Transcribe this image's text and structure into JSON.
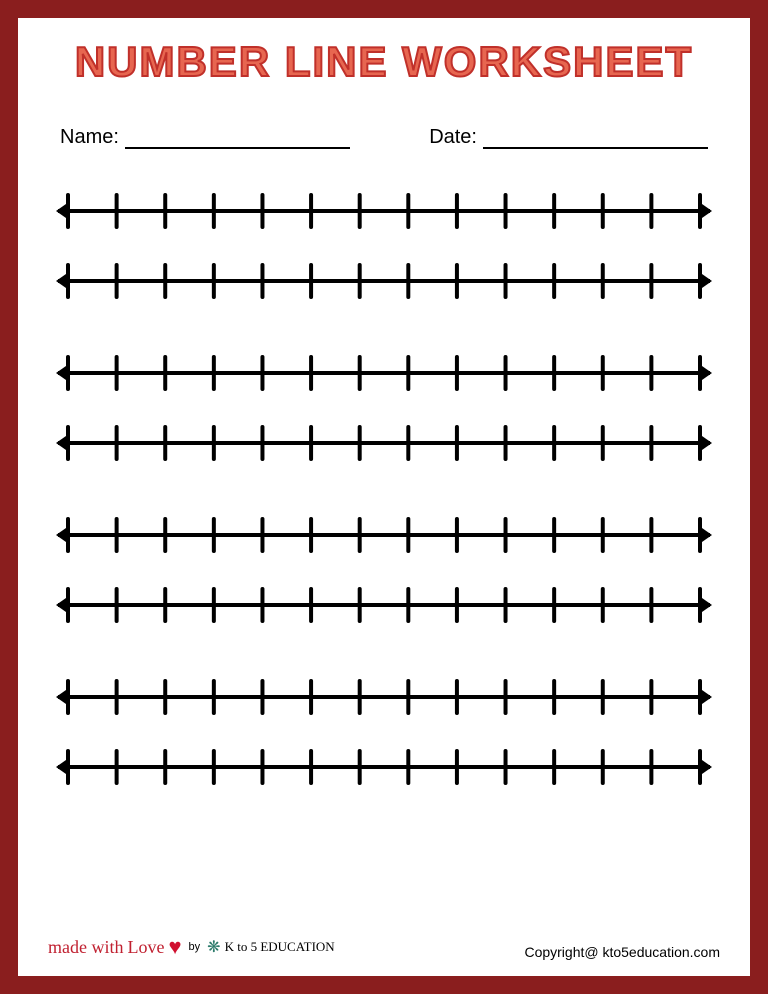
{
  "title": "NUMBER LINE WORKSHEET",
  "border_color": "#8a1e1e",
  "page_bg": "#ffffff",
  "title_fill": "#e76650",
  "title_stroke": "#c0302a",
  "title_fontsize": 42,
  "name_label": "Name:",
  "date_label": "Date:",
  "label_fontsize": 20,
  "numberlines": {
    "group_count": 4,
    "lines_per_group": 2,
    "ticks": 14,
    "line_color": "#000000",
    "line_width": 4,
    "tick_height": 32,
    "tick_width": 4,
    "arrow_size": 10
  },
  "credit": {
    "made_with": "made with",
    "love": "Love",
    "by": "by",
    "brand": "K to 5 EDUCATION"
  },
  "copyright": "Copyright@ kto5education.com"
}
